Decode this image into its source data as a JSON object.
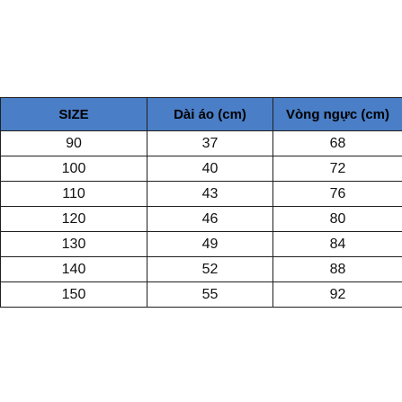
{
  "table": {
    "headers": [
      "SIZE",
      "Dài áo (cm)",
      "Vòng ngực (cm)"
    ],
    "header_color": "#4a7ec6",
    "rows": [
      [
        "90",
        "37",
        "68"
      ],
      [
        "100",
        "40",
        "72"
      ],
      [
        "110",
        "43",
        "76"
      ],
      [
        "120",
        "46",
        "80"
      ],
      [
        "130",
        "49",
        "84"
      ],
      [
        "140",
        "52",
        "88"
      ],
      [
        "150",
        "55",
        "92"
      ]
    ]
  }
}
